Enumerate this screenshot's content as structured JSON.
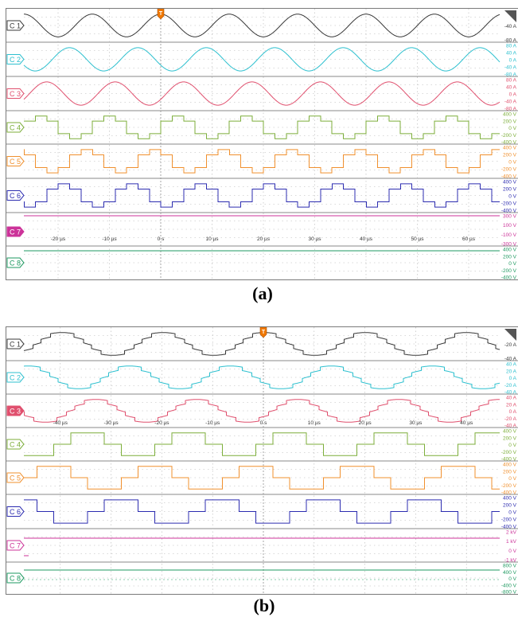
{
  "captions": {
    "a": "(a)",
    "b": "(b)"
  },
  "colors": {
    "C1": "#3a3a3a",
    "C2": "#2ec0cf",
    "C3": "#e0506e",
    "C4": "#7cae3a",
    "C5": "#f0902e",
    "C6": "#2c2cb0",
    "C7": "#cc3399",
    "C8": "#1e9960",
    "grid": "#b5b5b5",
    "panel_border": "#7a7a7a",
    "trigger": "#f07800"
  },
  "icons": {
    "trigger_marker": "trigger-marker-icon",
    "corner": "corner-arrow-icon"
  },
  "panels": [
    {
      "id": "a",
      "trigger_label": "T",
      "time_labels": [
        "-20 µs",
        "-10 µs",
        "0 s",
        "10 µs",
        "20 µs",
        "30 µs",
        "40 µs",
        "50 µs",
        "60 µs"
      ],
      "channels": [
        {
          "name": "C 1",
          "scale": [
            "0",
            "-40 A",
            "-80 A"
          ]
        },
        {
          "name": "C 2",
          "scale": [
            "80 A",
            "40 A",
            "0 A",
            "-40 A",
            "-80 A"
          ]
        },
        {
          "name": "C 3",
          "scale": [
            "80 A",
            "40 A",
            "0 A",
            "-40 A",
            "-80 A"
          ]
        },
        {
          "name": "C 4",
          "scale": [
            "400 V",
            "200 V",
            "0 V",
            "-200 V",
            "-400 V"
          ]
        },
        {
          "name": "C 5",
          "scale": [
            "400 V",
            "200 V",
            "0 V",
            "-200 V",
            "-400 V"
          ]
        },
        {
          "name": "C 6",
          "scale": [
            "400 V",
            "200 V",
            "0 V",
            "-200 V",
            "-400 V"
          ]
        },
        {
          "name": "C 7",
          "scale": [
            "300 V",
            "100 V",
            "-100 V",
            "-300 V"
          ]
        },
        {
          "name": "C 8",
          "scale": [
            "400 V",
            "200 V",
            "0 V",
            "-200 V",
            "-400 V"
          ]
        }
      ]
    },
    {
      "id": "b",
      "trigger_label": "T",
      "time_labels": [
        "-40 µs",
        "-30 µs",
        "-20 µs",
        "-10 µs",
        "0 s",
        "10 µs",
        "20 µs",
        "30 µs",
        "40 µs"
      ],
      "channels": [
        {
          "name": "C 1",
          "scale": [
            "0",
            "-20 A",
            "-40 A"
          ]
        },
        {
          "name": "C 2",
          "scale": [
            "40 A",
            "20 A",
            "0 A",
            "-20 A",
            "-40 A"
          ]
        },
        {
          "name": "C 3",
          "scale": [
            "40 A",
            "20 A",
            "0 A",
            "-20 A",
            "-40 A"
          ]
        },
        {
          "name": "C 4",
          "scale": [
            "400 V",
            "200 V",
            "0 V",
            "-200 V",
            "-400 V"
          ]
        },
        {
          "name": "C 5",
          "scale": [
            "400 V",
            "200 V",
            "0 V",
            "-200 V",
            "-400 V"
          ]
        },
        {
          "name": "C 6",
          "scale": [
            "400 V",
            "200 V",
            "0 V",
            "-200 V",
            "-400 V"
          ]
        },
        {
          "name": "C 7",
          "scale": [
            "2 kV",
            "1 kV",
            "0 V",
            "-1 kV"
          ]
        },
        {
          "name": "C 8",
          "scale": [
            "800 V",
            "400 V",
            "0 V",
            "-400 V",
            "-800 V"
          ]
        }
      ]
    }
  ]
}
